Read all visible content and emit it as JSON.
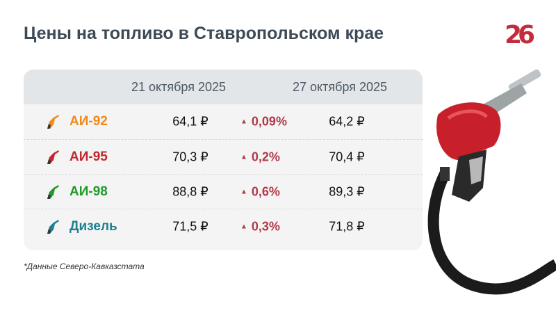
{
  "title": "Цены на топливо в Ставропольском крае",
  "logo": "26",
  "table": {
    "headers": [
      "21 октября 2025",
      "27 октября 2025"
    ],
    "rows": [
      {
        "fuel": "АИ-92",
        "color": "#f08a1c",
        "price_before": "64,1 ₽",
        "change": "0,09%",
        "price_after": "64,2 ₽"
      },
      {
        "fuel": "АИ-95",
        "color": "#c0282f",
        "price_before": "70,3 ₽",
        "change": "0,2%",
        "price_after": "70,4 ₽"
      },
      {
        "fuel": "АИ-98",
        "color": "#1f9a2a",
        "price_before": "88,8 ₽",
        "change": "0,6%",
        "price_after": "89,3 ₽"
      },
      {
        "fuel": "Дизель",
        "color": "#1f7f8f",
        "price_before": "71,5 ₽",
        "change": "0,3%",
        "price_after": "71,8 ₽"
      }
    ],
    "change_icon": "triangle-up-icon",
    "change_color": "#b03a48"
  },
  "footnote": "*Данные Северо-Кавказстата"
}
